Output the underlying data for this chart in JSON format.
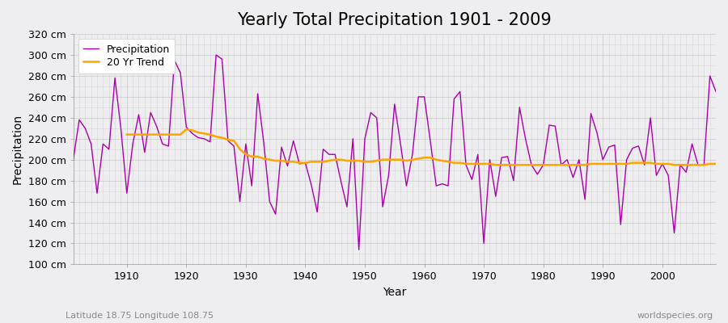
{
  "title": "Yearly Total Precipitation 1901 - 2009",
  "xlabel": "Year",
  "ylabel": "Precipitation",
  "subtitle": "Latitude 18.75 Longitude 108.75",
  "watermark": "worldspecies.org",
  "years": [
    1901,
    1902,
    1903,
    1904,
    1905,
    1906,
    1907,
    1908,
    1909,
    1910,
    1911,
    1912,
    1913,
    1914,
    1915,
    1916,
    1917,
    1918,
    1919,
    1920,
    1921,
    1922,
    1923,
    1924,
    1925,
    1926,
    1927,
    1928,
    1929,
    1930,
    1931,
    1932,
    1933,
    1934,
    1935,
    1936,
    1937,
    1938,
    1939,
    1940,
    1941,
    1942,
    1943,
    1944,
    1945,
    1946,
    1947,
    1948,
    1949,
    1950,
    1951,
    1952,
    1953,
    1954,
    1955,
    1956,
    1957,
    1958,
    1959,
    1960,
    1961,
    1962,
    1963,
    1964,
    1965,
    1966,
    1967,
    1968,
    1969,
    1970,
    1971,
    1972,
    1973,
    1974,
    1975,
    1976,
    1977,
    1978,
    1979,
    1980,
    1981,
    1982,
    1983,
    1984,
    1985,
    1986,
    1987,
    1988,
    1989,
    1990,
    1991,
    1992,
    1993,
    1994,
    1995,
    1996,
    1997,
    1998,
    1999,
    2000,
    2001,
    2002,
    2003,
    2004,
    2005,
    2006,
    2007,
    2008,
    2009
  ],
  "precip": [
    200,
    238,
    230,
    215,
    168,
    215,
    210,
    278,
    230,
    168,
    215,
    243,
    207,
    245,
    232,
    215,
    213,
    295,
    283,
    231,
    225,
    221,
    220,
    217,
    300,
    296,
    218,
    213,
    160,
    215,
    175,
    263,
    217,
    160,
    148,
    212,
    194,
    218,
    196,
    197,
    176,
    150,
    210,
    205,
    205,
    179,
    155,
    220,
    114,
    220,
    245,
    240,
    155,
    185,
    253,
    215,
    175,
    205,
    260,
    260,
    218,
    175,
    177,
    175,
    258,
    265,
    195,
    181,
    205,
    120,
    200,
    165,
    202,
    203,
    180,
    250,
    220,
    195,
    186,
    195,
    233,
    232,
    195,
    200,
    183,
    200,
    162,
    244,
    226,
    200,
    212,
    214,
    138,
    200,
    211,
    213,
    195,
    240,
    185,
    196,
    185,
    130,
    195,
    188,
    215,
    195,
    195,
    280,
    265
  ],
  "trend": [
    null,
    null,
    null,
    null,
    null,
    null,
    null,
    null,
    null,
    224,
    224,
    224,
    224,
    224,
    224,
    224,
    224,
    224,
    224,
    229,
    228,
    226,
    225,
    224,
    222,
    221,
    219,
    218,
    210,
    205,
    203,
    203,
    201,
    200,
    199,
    199,
    198,
    198,
    197,
    197,
    198,
    198,
    198,
    199,
    200,
    200,
    199,
    199,
    199,
    198,
    198,
    199,
    200,
    200,
    200,
    200,
    199,
    200,
    201,
    202,
    202,
    200,
    199,
    198,
    197,
    197,
    196,
    196,
    196,
    196,
    196,
    195,
    195,
    195,
    195,
    195,
    195,
    195,
    195,
    195,
    195,
    195,
    195,
    195,
    195,
    195,
    195,
    196,
    196,
    196,
    196,
    196,
    196,
    196,
    197,
    197,
    197,
    197,
    196,
    196,
    196,
    195,
    195,
    195,
    195,
    195,
    195,
    196,
    196
  ],
  "precip_color": "#AA00AA",
  "trend_color": "#FFA500",
  "bg_color": "#EEEEF0",
  "plot_bg_color": "#EEEEF0",
  "grid_color": "#CCCCCC",
  "ylim": [
    100,
    320
  ],
  "yticks": [
    100,
    120,
    140,
    160,
    180,
    200,
    220,
    240,
    260,
    280,
    300,
    320
  ],
  "ytick_labels": [
    "100 cm",
    "120 cm",
    "140 cm",
    "160 cm",
    "180 cm",
    "200 cm",
    "220 cm",
    "240 cm",
    "260 cm",
    "280 cm",
    "300 cm",
    "320 cm"
  ],
  "xticks": [
    1910,
    1920,
    1930,
    1940,
    1950,
    1960,
    1970,
    1980,
    1990,
    2000
  ],
  "title_fontsize": 15,
  "axis_label_fontsize": 10,
  "tick_fontsize": 9,
  "legend_fontsize": 9
}
